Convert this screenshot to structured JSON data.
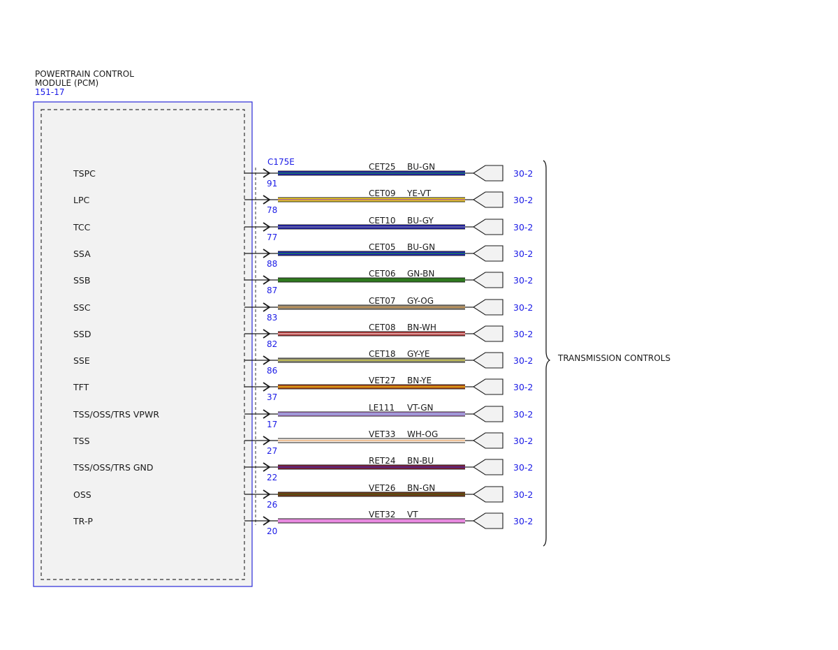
{
  "module": {
    "name_line1": "POWERTRAIN CONTROL",
    "name_line2": "MODULE (PCM)",
    "ref": "151-17"
  },
  "connector": "C175E",
  "group_label": "TRANSMISSION CONTROLS",
  "circuits": [
    {
      "signal": "TSPC",
      "pin": "91",
      "circuit": "CET25",
      "color_code": "BU-GN",
      "ref": "30-2",
      "base": "#1f1fb8",
      "stripe": "#1a9a3a"
    },
    {
      "signal": "LPC",
      "pin": "78",
      "circuit": "CET09",
      "color_code": "YE-VT",
      "ref": "30-2",
      "base": "#f2d21c",
      "stripe": "#8a3fb0"
    },
    {
      "signal": "TCC",
      "pin": "77",
      "circuit": "CET10",
      "color_code": "BU-GY",
      "ref": "30-2",
      "base": "#1f1fb8",
      "stripe": "#8e8e8e"
    },
    {
      "signal": "SSA",
      "pin": "88",
      "circuit": "CET05",
      "color_code": "BU-GN",
      "ref": "30-2",
      "base": "#1f1fb8",
      "stripe": "#1a9a3a"
    },
    {
      "signal": "SSB",
      "pin": "87",
      "circuit": "CET06",
      "color_code": "GN-BN",
      "ref": "30-2",
      "base": "#2f7a1f",
      "stripe": "#2f7a1f"
    },
    {
      "signal": "SSC",
      "pin": "83",
      "circuit": "CET07",
      "color_code": "GY-OG",
      "ref": "30-2",
      "base": "#9a8f7a",
      "stripe": "#c9893a"
    },
    {
      "signal": "SSD",
      "pin": "82",
      "circuit": "CET08",
      "color_code": "BN-WH",
      "ref": "30-2",
      "base": "#b53a3a",
      "stripe": "#f4d6d6"
    },
    {
      "signal": "SSE",
      "pin": "86",
      "circuit": "CET18",
      "color_code": "GY-YE",
      "ref": "30-2",
      "base": "#8e8e7a",
      "stripe": "#d8d23a"
    },
    {
      "signal": "TFT",
      "pin": "37",
      "circuit": "VET27",
      "color_code": "BN-YE",
      "ref": "30-2",
      "base": "#b04a14",
      "stripe": "#f2d21c"
    },
    {
      "signal": "TSS/OSS/TRS VPWR",
      "pin": "17",
      "circuit": "LE111",
      "color_code": "VT-GN",
      "ref": "30-2",
      "base": "#b78ad8",
      "stripe": "#7fb0d8"
    },
    {
      "signal": "TSS",
      "pin": "27",
      "circuit": "VET33",
      "color_code": "WH-OG",
      "ref": "30-2",
      "base": "#f5f0ea",
      "stripe": "#e8a060"
    },
    {
      "signal": "TSS/OSS/TRS GND",
      "pin": "22",
      "circuit": "RET24",
      "color_code": "BN-BU",
      "ref": "30-2",
      "base": "#8a1f3a",
      "stripe": "#2a2ab0"
    },
    {
      "signal": "OSS",
      "pin": "26",
      "circuit": "VET26",
      "color_code": "BN-GN",
      "ref": "30-2",
      "base": "#7a3a14",
      "stripe": "#3a5a14"
    },
    {
      "signal": "TR-P",
      "pin": "20",
      "circuit": "VET32",
      "color_code": "VT",
      "ref": "30-2",
      "base": "#e88ae0",
      "stripe": "#e88ae0"
    }
  ]
}
